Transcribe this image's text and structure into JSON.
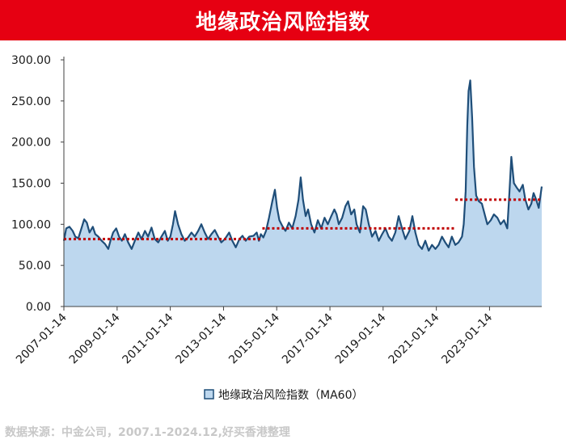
{
  "header": {
    "title": "地缘政治风险指数"
  },
  "footer": {
    "source": "数据来源：中金公司，2007.1-2024.12,好买香港整理"
  },
  "colors": {
    "title_bg": "#e60012",
    "line": "#1f4e79",
    "fill": "#bdd7ee",
    "ref_line": "#c00000",
    "axis": "#404040"
  },
  "chart_data": {
    "type": "area",
    "title": "",
    "xlabel": "",
    "ylabel": "",
    "ylim": [
      0,
      300
    ],
    "y_ticks": [
      "0.00",
      "50.00",
      "100.00",
      "150.00",
      "200.00",
      "250.00",
      "300.00"
    ],
    "x_ticks": [
      "2007-01-14",
      "2009-01-14",
      "2011-01-14",
      "2013-01-14",
      "2015-01-14",
      "2017-01-14",
      "2019-01-14",
      "2021-01-14",
      "2023-01-14"
    ],
    "x_range": [
      "2007-01-14",
      "2024-12-31"
    ],
    "grid": false,
    "legend_position": "bottom",
    "series": [
      {
        "name": "地缘政治风险指数（MA60）",
        "points": [
          [
            "2007-01-14",
            80
          ],
          [
            "2007-02-15",
            95
          ],
          [
            "2007-04-01",
            97
          ],
          [
            "2007-05-15",
            92
          ],
          [
            "2007-06-20",
            85
          ],
          [
            "2007-08-01",
            83
          ],
          [
            "2007-09-15",
            96
          ],
          [
            "2007-10-20",
            106
          ],
          [
            "2007-11-25",
            102
          ],
          [
            "2008-01-01",
            90
          ],
          [
            "2008-02-15",
            97
          ],
          [
            "2008-03-20",
            88
          ],
          [
            "2008-05-01",
            85
          ],
          [
            "2008-06-15",
            80
          ],
          [
            "2008-08-01",
            76
          ],
          [
            "2008-09-15",
            70
          ],
          [
            "2008-10-15",
            80
          ],
          [
            "2008-11-20",
            90
          ],
          [
            "2009-01-01",
            95
          ],
          [
            "2009-02-10",
            85
          ],
          [
            "2009-03-20",
            80
          ],
          [
            "2009-05-01",
            88
          ],
          [
            "2009-06-15",
            78
          ],
          [
            "2009-08-01",
            70
          ],
          [
            "2009-09-15",
            80
          ],
          [
            "2009-11-01",
            90
          ],
          [
            "2009-12-15",
            82
          ],
          [
            "2010-02-01",
            92
          ],
          [
            "2010-03-15",
            85
          ],
          [
            "2010-05-01",
            96
          ],
          [
            "2010-06-15",
            82
          ],
          [
            "2010-08-01",
            78
          ],
          [
            "2010-09-15",
            85
          ],
          [
            "2010-11-01",
            92
          ],
          [
            "2010-12-10",
            80
          ],
          [
            "2011-01-15",
            85
          ],
          [
            "2011-02-20",
            100
          ],
          [
            "2011-03-20",
            116
          ],
          [
            "2011-05-01",
            100
          ],
          [
            "2011-06-15",
            88
          ],
          [
            "2011-08-01",
            80
          ],
          [
            "2011-09-15",
            84
          ],
          [
            "2011-11-01",
            90
          ],
          [
            "2011-12-15",
            85
          ],
          [
            "2012-02-01",
            92
          ],
          [
            "2012-03-15",
            100
          ],
          [
            "2012-05-01",
            90
          ],
          [
            "2012-06-15",
            82
          ],
          [
            "2012-08-01",
            88
          ],
          [
            "2012-09-15",
            93
          ],
          [
            "2012-11-01",
            85
          ],
          [
            "2012-12-15",
            78
          ],
          [
            "2013-02-01",
            82
          ],
          [
            "2013-04-01",
            90
          ],
          [
            "2013-05-15",
            80
          ],
          [
            "2013-07-01",
            72
          ],
          [
            "2013-08-20",
            82
          ],
          [
            "2013-10-01",
            86
          ],
          [
            "2013-11-15",
            80
          ],
          [
            "2014-01-01",
            85
          ],
          [
            "2014-03-01",
            86
          ],
          [
            "2014-04-15",
            90
          ],
          [
            "2014-05-15",
            80
          ],
          [
            "2014-06-10",
            88
          ],
          [
            "2014-07-15",
            84
          ],
          [
            "2014-08-20",
            92
          ],
          [
            "2014-10-01",
            108
          ],
          [
            "2014-11-15",
            128
          ],
          [
            "2014-12-20",
            142
          ],
          [
            "2015-01-20",
            120
          ],
          [
            "2015-02-20",
            105
          ],
          [
            "2015-04-01",
            98
          ],
          [
            "2015-05-15",
            92
          ],
          [
            "2015-07-01",
            102
          ],
          [
            "2015-08-15",
            95
          ],
          [
            "2015-10-01",
            110
          ],
          [
            "2015-11-10",
            130
          ],
          [
            "2015-12-10",
            157
          ],
          [
            "2016-01-10",
            130
          ],
          [
            "2016-02-15",
            110
          ],
          [
            "2016-03-20",
            118
          ],
          [
            "2016-05-01",
            100
          ],
          [
            "2016-06-15",
            90
          ],
          [
            "2016-08-01",
            105
          ],
          [
            "2016-09-15",
            95
          ],
          [
            "2016-11-01",
            108
          ],
          [
            "2016-12-15",
            100
          ],
          [
            "2017-02-01",
            110
          ],
          [
            "2017-03-15",
            118
          ],
          [
            "2017-04-15",
            112
          ],
          [
            "2017-05-15",
            100
          ],
          [
            "2017-07-01",
            108
          ],
          [
            "2017-08-15",
            122
          ],
          [
            "2017-09-20",
            128
          ],
          [
            "2017-11-01",
            112
          ],
          [
            "2017-12-15",
            118
          ],
          [
            "2018-01-15",
            100
          ],
          [
            "2018-03-01",
            90
          ],
          [
            "2018-04-15",
            122
          ],
          [
            "2018-05-20",
            118
          ],
          [
            "2018-07-01",
            100
          ],
          [
            "2018-08-15",
            85
          ],
          [
            "2018-10-01",
            92
          ],
          [
            "2018-11-15",
            80
          ],
          [
            "2019-01-01",
            88
          ],
          [
            "2019-02-15",
            95
          ],
          [
            "2019-04-01",
            85
          ],
          [
            "2019-05-15",
            80
          ],
          [
            "2019-07-01",
            90
          ],
          [
            "2019-08-15",
            110
          ],
          [
            "2019-10-01",
            95
          ],
          [
            "2019-11-15",
            82
          ],
          [
            "2020-01-10",
            92
          ],
          [
            "2020-02-20",
            110
          ],
          [
            "2020-04-01",
            90
          ],
          [
            "2020-05-15",
            75
          ],
          [
            "2020-07-01",
            70
          ],
          [
            "2020-08-15",
            80
          ],
          [
            "2020-10-01",
            68
          ],
          [
            "2020-11-15",
            75
          ],
          [
            "2021-01-01",
            70
          ],
          [
            "2021-02-15",
            75
          ],
          [
            "2021-04-01",
            85
          ],
          [
            "2021-05-15",
            78
          ],
          [
            "2021-07-01",
            72
          ],
          [
            "2021-08-15",
            85
          ],
          [
            "2021-10-01",
            75
          ],
          [
            "2021-11-15",
            78
          ],
          [
            "2022-01-01",
            85
          ],
          [
            "2022-01-25",
            100
          ],
          [
            "2022-02-20",
            140
          ],
          [
            "2022-03-15",
            220
          ],
          [
            "2022-04-01",
            262
          ],
          [
            "2022-04-25",
            275
          ],
          [
            "2022-05-20",
            230
          ],
          [
            "2022-06-15",
            170
          ],
          [
            "2022-07-15",
            135
          ],
          [
            "2022-08-20",
            128
          ],
          [
            "2022-10-01",
            125
          ],
          [
            "2022-11-15",
            110
          ],
          [
            "2022-12-15",
            100
          ],
          [
            "2023-02-01",
            105
          ],
          [
            "2023-03-15",
            112
          ],
          [
            "2023-05-01",
            108
          ],
          [
            "2023-06-15",
            100
          ],
          [
            "2023-08-01",
            105
          ],
          [
            "2023-09-15",
            95
          ],
          [
            "2023-10-15",
            140
          ],
          [
            "2023-11-10",
            182
          ],
          [
            "2023-12-15",
            150
          ],
          [
            "2024-01-20",
            145
          ],
          [
            "2024-03-01",
            140
          ],
          [
            "2024-04-15",
            148
          ],
          [
            "2024-05-20",
            130
          ],
          [
            "2024-07-01",
            118
          ],
          [
            "2024-08-10",
            125
          ],
          [
            "2024-09-10",
            138
          ],
          [
            "2024-10-15",
            130
          ],
          [
            "2024-11-20",
            120
          ],
          [
            "2024-12-31",
            146
          ]
        ]
      }
    ],
    "reference_lines": [
      {
        "x_from": "2007-01-14",
        "x_to": "2014-07-01",
        "y": 82
      },
      {
        "x_from": "2014-07-01",
        "x_to": "2021-10-01",
        "y": 95
      },
      {
        "x_from": "2021-10-01",
        "x_to": "2024-12-31",
        "y": 130
      }
    ]
  }
}
